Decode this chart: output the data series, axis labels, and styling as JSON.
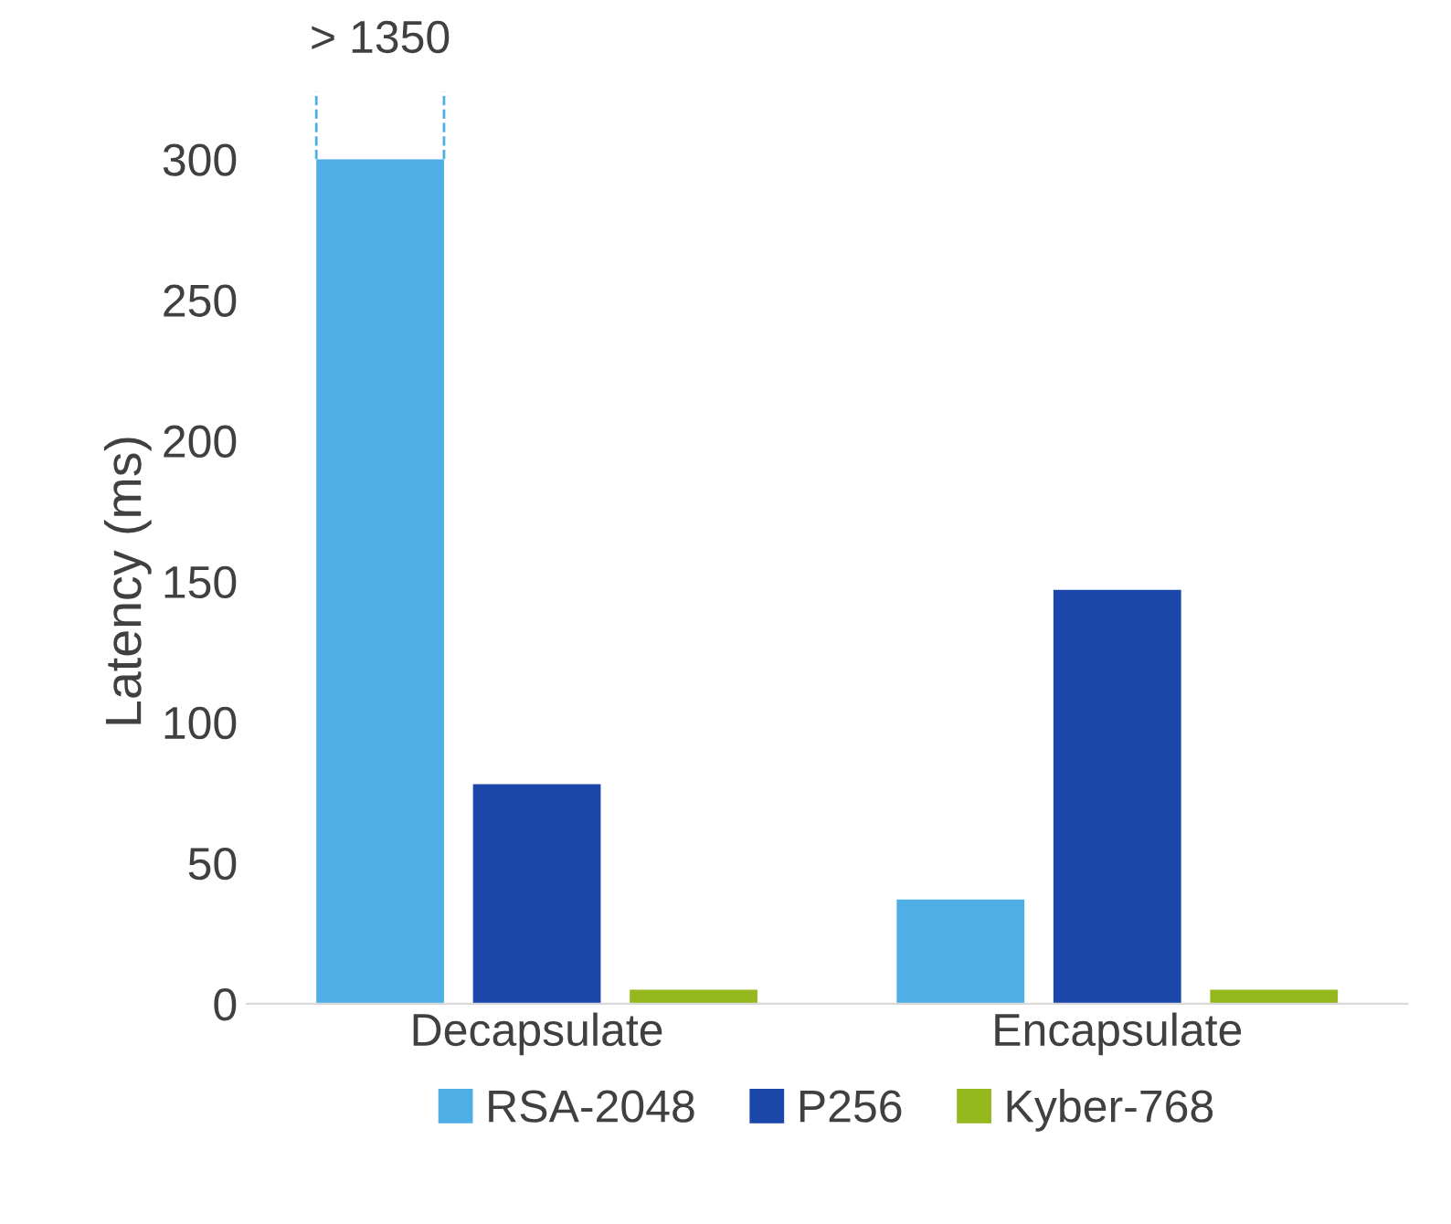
{
  "chart_data": {
    "type": "bar",
    "ylabel": "Latency (ms)",
    "categories": [
      "Decapsulate",
      "Encapsulate"
    ],
    "series": [
      {
        "name": "RSA-2048",
        "color": "#4eaee5",
        "values": [
          300,
          37
        ]
      },
      {
        "name": "P256",
        "color": "#1a47a9",
        "values": [
          78,
          147
        ]
      },
      {
        "name": "Kyber-768",
        "color": "#94b81e",
        "values": [
          5,
          5
        ]
      }
    ],
    "ylim": [
      0,
      300
    ],
    "yticks": [
      0,
      50,
      100,
      150,
      200,
      250,
      300
    ],
    "annotations": [
      "> 1350"
    ],
    "grid": false,
    "legend": "bottom"
  }
}
